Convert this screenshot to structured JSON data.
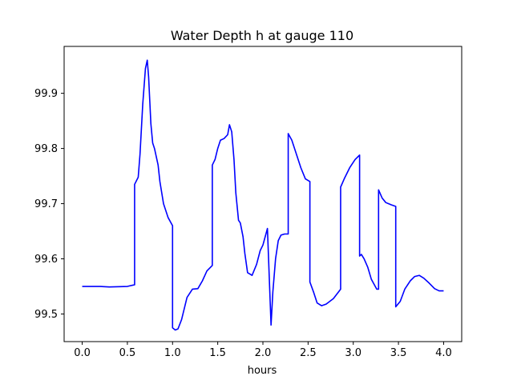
{
  "chart_data": {
    "type": "line",
    "title": "Water Depth h at gauge 110",
    "xlabel": "hours",
    "ylabel": "",
    "xlim": [
      -0.2,
      4.2
    ],
    "ylim": [
      99.45,
      99.985
    ],
    "xticks": [
      0.0,
      0.5,
      1.0,
      1.5,
      2.0,
      2.5,
      3.0,
      3.5,
      4.0
    ],
    "xtick_labels": [
      "0.0",
      "0.5",
      "1.0",
      "1.5",
      "2.0",
      "2.5",
      "3.0",
      "3.5",
      "4.0"
    ],
    "yticks": [
      99.5,
      99.6,
      99.7,
      99.8,
      99.9
    ],
    "ytick_labels": [
      "99.5",
      "99.6",
      "99.7",
      "99.8",
      "99.9"
    ],
    "grid": false,
    "series": [
      {
        "name": "h",
        "color": "#0000ff",
        "x": [
          0.0,
          0.2,
          0.3,
          0.5,
          0.58,
          0.58,
          0.62,
          0.64,
          0.67,
          0.7,
          0.72,
          0.735,
          0.76,
          0.78,
          0.8,
          0.84,
          0.86,
          0.9,
          0.95,
          1.0,
          1.0,
          1.03,
          1.06,
          1.1,
          1.16,
          1.22,
          1.28,
          1.33,
          1.38,
          1.44,
          1.44,
          1.47,
          1.5,
          1.53,
          1.57,
          1.61,
          1.63,
          1.655,
          1.68,
          1.7,
          1.73,
          1.75,
          1.78,
          1.8,
          1.83,
          1.88,
          1.93,
          1.97,
          2.0,
          2.05,
          2.09,
          2.09,
          2.11,
          2.14,
          2.17,
          2.2,
          2.24,
          2.28,
          2.28,
          2.32,
          2.37,
          2.42,
          2.47,
          2.52,
          2.52,
          2.56,
          2.6,
          2.65,
          2.7,
          2.78,
          2.86,
          2.86,
          2.9,
          2.96,
          3.02,
          3.07,
          3.07,
          3.09,
          3.12,
          3.16,
          3.2,
          3.26,
          3.28,
          3.28,
          3.32,
          3.36,
          3.42,
          3.47,
          3.47,
          3.52,
          3.57,
          3.63,
          3.68,
          3.73,
          3.78,
          3.84,
          3.9,
          3.95,
          4.0
        ],
        "y": [
          99.55,
          99.55,
          99.549,
          99.55,
          99.553,
          99.735,
          99.748,
          99.79,
          99.88,
          99.945,
          99.96,
          99.93,
          99.845,
          99.81,
          99.8,
          99.77,
          99.74,
          99.7,
          99.675,
          99.66,
          99.475,
          99.471,
          99.473,
          99.49,
          99.53,
          99.545,
          99.546,
          99.56,
          99.578,
          99.588,
          99.77,
          99.78,
          99.8,
          99.815,
          99.818,
          99.825,
          99.843,
          99.83,
          99.78,
          99.72,
          99.67,
          99.665,
          99.64,
          99.61,
          99.575,
          99.57,
          99.59,
          99.615,
          99.625,
          99.655,
          99.48,
          99.48,
          99.54,
          99.6,
          99.633,
          99.643,
          99.645,
          99.645,
          99.827,
          99.815,
          99.79,
          99.765,
          99.745,
          99.74,
          99.558,
          99.54,
          99.52,
          99.515,
          99.518,
          99.528,
          99.545,
          99.73,
          99.745,
          99.765,
          99.78,
          99.788,
          99.605,
          99.608,
          99.6,
          99.585,
          99.563,
          99.545,
          99.545,
          99.725,
          99.71,
          99.702,
          99.698,
          99.695,
          99.513,
          99.523,
          99.545,
          99.56,
          99.568,
          99.57,
          99.565,
          99.556,
          99.546,
          99.542,
          99.542
        ]
      }
    ]
  }
}
